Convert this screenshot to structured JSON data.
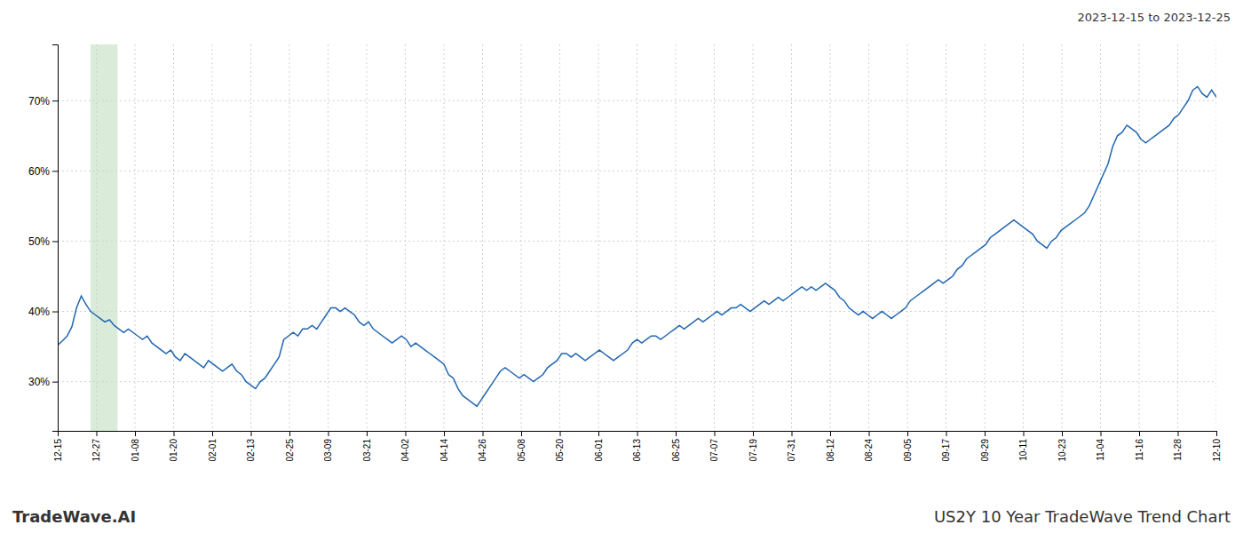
{
  "chart_data": {
    "type": "line",
    "title": "US2Y 10 Year TradeWave Trend Chart",
    "subtitle": "2023-12-15 to 2023-12-25",
    "annotations": [
      {
        "text": "TradeWave.AI"
      }
    ],
    "color": "#2166b0",
    "grid": true,
    "spans": [
      {
        "x0": 6.97,
        "x1": 12.71,
        "color": "#daecd9"
      }
    ],
    "xlim": [
      0,
      246
    ],
    "xticks": [
      {
        "value": 0,
        "label": "12-15"
      },
      {
        "value": 8.2,
        "label": "12-27"
      },
      {
        "value": 16.4,
        "label": "01-08"
      },
      {
        "value": 24.6,
        "label": "01-20"
      },
      {
        "value": 32.8,
        "label": "02-01"
      },
      {
        "value": 41,
        "label": "02-13"
      },
      {
        "value": 49.2,
        "label": "02-25"
      },
      {
        "value": 57.4,
        "label": "03-09"
      },
      {
        "value": 65.6,
        "label": "03-21"
      },
      {
        "value": 73.8,
        "label": "04-02"
      },
      {
        "value": 82,
        "label": "04-14"
      },
      {
        "value": 90.2,
        "label": "04-26"
      },
      {
        "value": 98.4,
        "label": "05-08"
      },
      {
        "value": 106.6,
        "label": "05-20"
      },
      {
        "value": 114.8,
        "label": "06-01"
      },
      {
        "value": 123,
        "label": "06-13"
      },
      {
        "value": 131.2,
        "label": "06-25"
      },
      {
        "value": 139.4,
        "label": "07-07"
      },
      {
        "value": 147.6,
        "label": "07-19"
      },
      {
        "value": 155.8,
        "label": "07-31"
      },
      {
        "value": 164,
        "label": "08-12"
      },
      {
        "value": 172.2,
        "label": "08-24"
      },
      {
        "value": 180.4,
        "label": "09-05"
      },
      {
        "value": 188.6,
        "label": "09-17"
      },
      {
        "value": 196.8,
        "label": "09-29"
      },
      {
        "value": 205,
        "label": "10-11"
      },
      {
        "value": 213.2,
        "label": "10-23"
      },
      {
        "value": 221.4,
        "label": "11-04"
      },
      {
        "value": 229.6,
        "label": "11-16"
      },
      {
        "value": 237.8,
        "label": "11-28"
      },
      {
        "value": 246,
        "label": "12-10"
      }
    ],
    "ylim": [
      23,
      78
    ],
    "yticks": [
      {
        "value": 30,
        "label": "30%"
      },
      {
        "value": 40,
        "label": "40%"
      },
      {
        "value": 50,
        "label": "50%"
      },
      {
        "value": 60,
        "label": "60%"
      },
      {
        "value": 70,
        "label": "70%"
      }
    ],
    "x": [
      0,
      1,
      2,
      3,
      4,
      5,
      6,
      7,
      8,
      9,
      10,
      11,
      12,
      13,
      14,
      15,
      16,
      17,
      18,
      19,
      20,
      21,
      22,
      23,
      24,
      25,
      26,
      27,
      28,
      29,
      30,
      31,
      32,
      33,
      34,
      35,
      36,
      37,
      38,
      39,
      40,
      41,
      42,
      43,
      44,
      45,
      46,
      47,
      48,
      49,
      50,
      51,
      52,
      53,
      54,
      55,
      56,
      57,
      58,
      59,
      60,
      61,
      62,
      63,
      64,
      65,
      66,
      67,
      68,
      69,
      70,
      71,
      72,
      73,
      74,
      75,
      76,
      77,
      78,
      79,
      80,
      81,
      82,
      83,
      84,
      85,
      86,
      87,
      88,
      89,
      90,
      91,
      92,
      93,
      94,
      95,
      96,
      97,
      98,
      99,
      100,
      101,
      102,
      103,
      104,
      105,
      106,
      107,
      108,
      109,
      110,
      111,
      112,
      113,
      114,
      115,
      116,
      117,
      118,
      119,
      120,
      121,
      122,
      123,
      124,
      125,
      126,
      127,
      128,
      129,
      130,
      131,
      132,
      133,
      134,
      135,
      136,
      137,
      138,
      139,
      140,
      141,
      142,
      143,
      144,
      145,
      146,
      147,
      148,
      149,
      150,
      151,
      152,
      153,
      154,
      155,
      156,
      157,
      158,
      159,
      160,
      161,
      162,
      163,
      164,
      165,
      166,
      167,
      168,
      169,
      170,
      171,
      172,
      173,
      174,
      175,
      176,
      177,
      178,
      179,
      180,
      181,
      182,
      183,
      184,
      185,
      186,
      187,
      188,
      189,
      190,
      191,
      192,
      193,
      194,
      195,
      196,
      197,
      198,
      199,
      200,
      201,
      202,
      203,
      204,
      205,
      206,
      207,
      208,
      209,
      210,
      211,
      212,
      213,
      214,
      215,
      216,
      217,
      218,
      219,
      220,
      221,
      222,
      223,
      224,
      225,
      226,
      227,
      228,
      229,
      230,
      231,
      232,
      233,
      234,
      235,
      236,
      237,
      238,
      239,
      240,
      241,
      242,
      243,
      244,
      245,
      246
    ],
    "values": [
      35.2,
      35.8,
      36.5,
      37.8,
      40.5,
      42.2,
      41.0,
      40.0,
      39.5,
      39.0,
      38.5,
      38.8,
      38.0,
      37.5,
      37.0,
      37.5,
      37.0,
      36.5,
      36.0,
      36.5,
      35.5,
      35.0,
      34.5,
      34.0,
      34.5,
      33.5,
      33.0,
      34.0,
      33.5,
      33.0,
      32.5,
      32.0,
      33.0,
      32.5,
      32.0,
      31.5,
      32.0,
      32.5,
      31.5,
      31.0,
      30.0,
      29.5,
      29.0,
      30.0,
      30.5,
      31.5,
      32.5,
      33.5,
      36.0,
      36.5,
      37.0,
      36.5,
      37.5,
      37.5,
      38.0,
      37.5,
      38.5,
      39.5,
      40.5,
      40.5,
      40.0,
      40.5,
      40.0,
      39.5,
      38.5,
      38.0,
      38.5,
      37.5,
      37.0,
      36.5,
      36.0,
      35.5,
      36.0,
      36.5,
      36.0,
      35.0,
      35.5,
      35.0,
      34.5,
      34.0,
      33.5,
      33.0,
      32.5,
      31.0,
      30.5,
      29.0,
      28.0,
      27.5,
      27.0,
      26.5,
      27.5,
      28.5,
      29.5,
      30.5,
      31.5,
      32.0,
      31.5,
      31.0,
      30.5,
      31.0,
      30.5,
      30.0,
      30.5,
      31.0,
      32.0,
      32.5,
      33.0,
      34.0,
      34.0,
      33.5,
      34.0,
      33.5,
      33.0,
      33.5,
      34.0,
      34.5,
      34.0,
      33.5,
      33.0,
      33.5,
      34.0,
      34.5,
      35.5,
      36.0,
      35.5,
      36.0,
      36.5,
      36.5,
      36.0,
      36.5,
      37.0,
      37.5,
      38.0,
      37.5,
      38.0,
      38.5,
      39.0,
      38.5,
      39.0,
      39.5,
      40.0,
      39.5,
      40.0,
      40.5,
      40.5,
      41.0,
      40.5,
      40.0,
      40.5,
      41.0,
      41.5,
      41.0,
      41.5,
      42.0,
      41.5,
      42.0,
      42.5,
      43.0,
      43.5,
      43.0,
      43.5,
      43.0,
      43.5,
      44.0,
      43.5,
      43.0,
      42.0,
      41.5,
      40.5,
      40.0,
      39.5,
      40.0,
      39.5,
      39.0,
      39.5,
      40.0,
      39.5,
      39.0,
      39.5,
      40.0,
      40.5,
      41.5,
      42.0,
      42.5,
      43.0,
      43.5,
      44.0,
      44.5,
      44.0,
      44.5,
      45.0,
      46.0,
      46.5,
      47.5,
      48.0,
      48.5,
      49.0,
      49.5,
      50.5,
      51.0,
      51.5,
      52.0,
      52.5,
      53.0,
      52.5,
      52.0,
      51.5,
      51.0,
      50.0,
      49.5,
      49.0,
      50.0,
      50.5,
      51.5,
      52.0,
      52.5,
      53.0,
      53.5,
      54.0,
      55.0,
      56.5,
      58.0,
      59.5,
      61.0,
      63.5,
      65.0,
      65.5,
      66.5,
      66.0,
      65.5,
      64.5,
      64.0,
      64.5,
      65.0,
      65.5,
      66.0,
      66.5,
      67.5,
      68.0,
      69.0,
      70.0,
      71.5,
      72.0,
      71.0,
      70.5,
      71.5,
      70.5
    ]
  }
}
